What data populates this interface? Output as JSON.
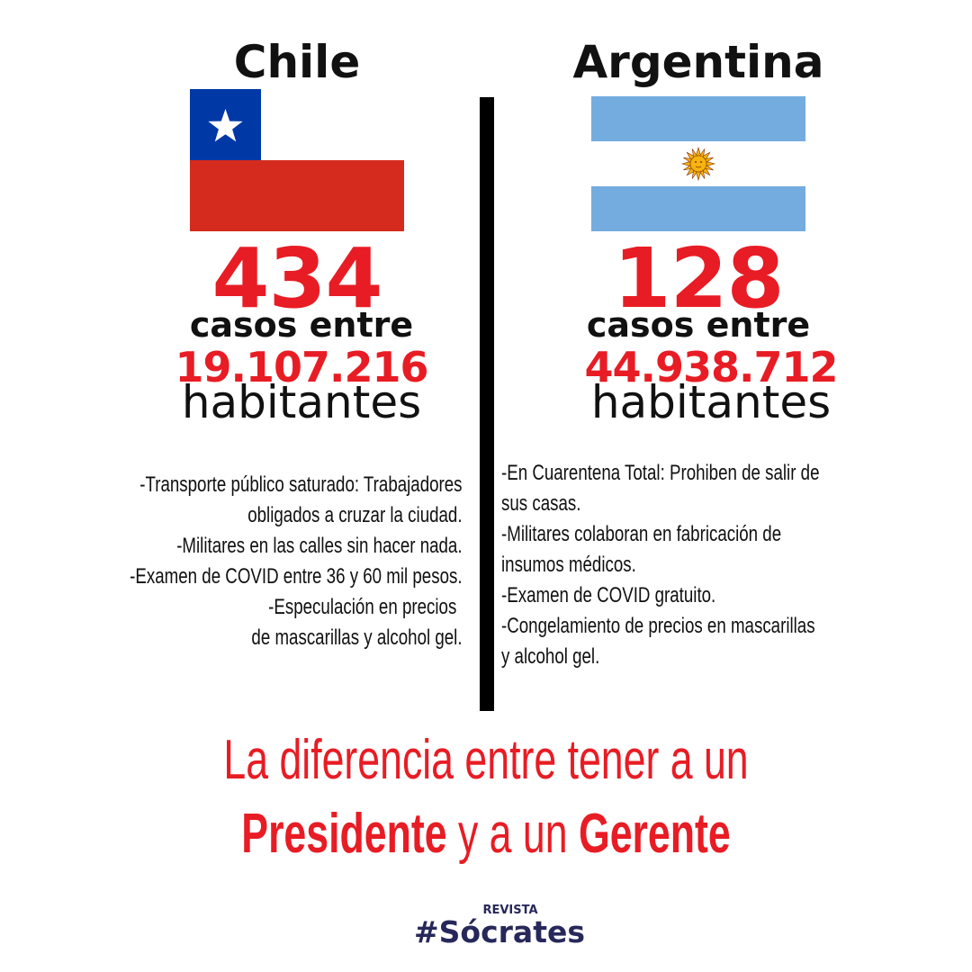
{
  "colors": {
    "accent_red": "#e81c24",
    "text_dark": "#111111",
    "brand_navy": "#27285a",
    "chile_red": "#d52b1e",
    "chile_blue": "#0039a6",
    "argentina_blue": "#74acdf",
    "sun_gold": "#f6b40e"
  },
  "left": {
    "country": "Chile",
    "flag_icon": "chile-flag",
    "cases": "434",
    "cases_label": "casos entre",
    "population": "19.107.216",
    "inhabitants_label": "habitantes",
    "bullets": [
      "-Transporte público saturado: Trabajadores",
      "obligados a cruzar la ciudad.",
      "-Militares en las calles sin hacer nada.",
      "-Examen de COVID entre 36 y 60 mil pesos.",
      "-Especulación en precios",
      "de mascarillas y alcohol gel."
    ]
  },
  "right": {
    "country": "Argentina",
    "flag_icon": "argentina-flag",
    "cases": "128",
    "cases_label": "casos entre",
    "population": "44.938.712",
    "inhabitants_label": "habitantes",
    "bullets": [
      "-En Cuarentena Total: Prohiben de salir de",
      "sus casas.",
      "-Militares colaboran en fabricación de",
      "insumos médicos.",
      "-Examen de COVID gratuito.",
      "-Congelamiento de precios en mascarillas",
      "y alcohol gel."
    ]
  },
  "headline": {
    "line1": "La diferencia entre tener a un",
    "word_president": "Presidente",
    "connector": "y a un",
    "word_manager": "Gerente"
  },
  "brand": {
    "small": "REVISTA",
    "big": "#Sócrates"
  }
}
